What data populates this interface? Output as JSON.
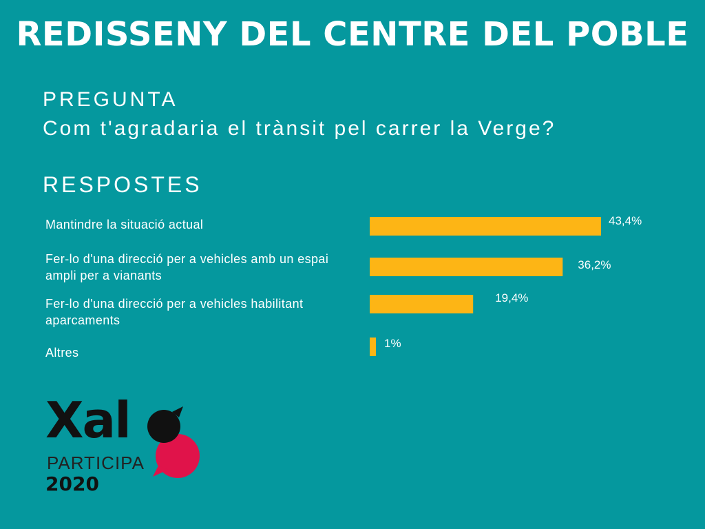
{
  "title": "REDISSENY DEL CENTRE DEL POBLE",
  "question_label": "PREGUNTA",
  "question_text": "Com t'agradaria el trànsit pel carrer la Verge?",
  "answers_label": "RESPOSTES",
  "logo": {
    "name": "Xaló",
    "subtitle": "PARTICIPA",
    "year": "2020",
    "colors": {
      "text": "#111111",
      "accent": "#e0134a"
    }
  },
  "colors": {
    "background": "#05989e",
    "bar": "#fdb515",
    "text": "#ffffff"
  },
  "chart_data": {
    "type": "bar",
    "orientation": "horizontal",
    "categories": [
      "Mantindre la situació actual",
      "Fer-lo d'una direcció per a vehicles amb un espai ampli per a  vianants",
      "Fer-lo d'una direcció per a vehicles habilitant aparcaments",
      "Altres"
    ],
    "values": [
      43.4,
      36.2,
      19.4,
      1
    ],
    "value_labels": [
      "43,4%",
      "36,2%",
      "19,4%",
      "1%"
    ],
    "unit": "%",
    "grid": false,
    "axes_visible": false
  }
}
